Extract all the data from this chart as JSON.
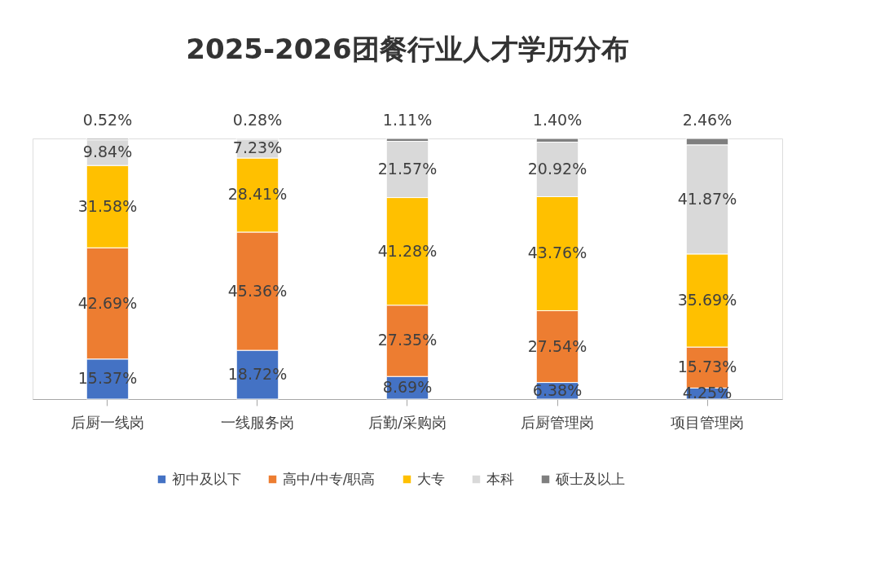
{
  "chart_data": {
    "type": "bar",
    "stacked": true,
    "title": "2025-2026团餐行业人才学历分布",
    "categories": [
      "后厨一线岗",
      "一线服务岗",
      "后勤/采购岗",
      "后厨管理岗",
      "项目管理岗"
    ],
    "series": [
      {
        "name": "初中及以下",
        "color": "#4472c4",
        "values": [
          15.37,
          18.72,
          8.69,
          6.38,
          4.25
        ],
        "value_labels": [
          "15.37%",
          "18.72%",
          "8.69%",
          "6.38%",
          "4.25%"
        ]
      },
      {
        "name": "高中/中专/职高",
        "color": "#ed7d31",
        "values": [
          42.69,
          45.36,
          27.35,
          27.54,
          15.73
        ],
        "value_labels": [
          "42.69%",
          "45.36%",
          "27.35%",
          "27.54%",
          "15.73%"
        ]
      },
      {
        "name": "大专",
        "color": "#ffc000",
        "values": [
          31.58,
          28.41,
          41.28,
          43.76,
          35.69
        ],
        "value_labels": [
          "31.58%",
          "28.41%",
          "41.28%",
          "43.76%",
          "35.69%"
        ]
      },
      {
        "name": "本科",
        "color": "#d9d9d9",
        "values": [
          9.84,
          7.23,
          21.57,
          20.92,
          41.87
        ],
        "value_labels": [
          "9.84%",
          "7.23%",
          "21.57%",
          "20.92%",
          "41.87%"
        ]
      },
      {
        "name": "硕士及以上",
        "color": "#7f7f7f",
        "values": [
          0.52,
          0.28,
          1.11,
          1.4,
          2.46
        ],
        "value_labels": [
          "0.52%",
          "0.28%",
          "1.11%",
          "1.40%",
          "2.46%"
        ]
      }
    ],
    "legend": "bottom"
  }
}
